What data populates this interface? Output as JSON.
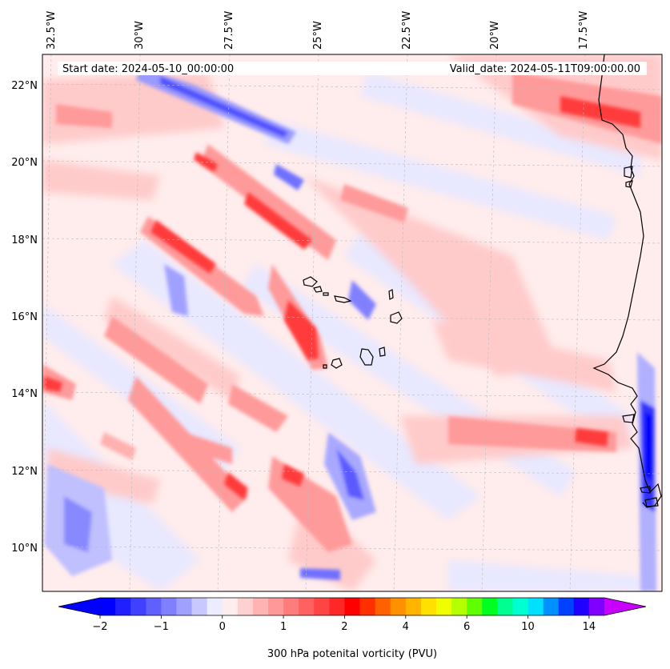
{
  "map": {
    "info": {
      "start_date": "Start date: 2024-05-10_00:00:00",
      "valid_date": "Valid_date: 2024-05-11T09:00:00.00"
    },
    "lon_ticks": [
      "32.5°W",
      "30°W",
      "27.5°W",
      "25°W",
      "22.5°W",
      "20°W",
      "17.5°W"
    ],
    "lat_ticks": [
      "22°N",
      "20°N",
      "18°N",
      "16°N",
      "14°N",
      "12°N",
      "10°N"
    ],
    "field": "300 hPa potential vorticity",
    "colors": {
      "strong_positive": "#ff2a2a",
      "mid_positive": "#ff8a8a",
      "weak_positive": "#ffd6d6",
      "near_zero": "#ffecec",
      "weak_negative": "#dcdcff",
      "strong_negative": "#3a3aff",
      "coast": "#000000"
    }
  },
  "colorbar": {
    "label": "300 hPa potenital vorticity (PVU)",
    "tick_labels": [
      "−2",
      "−1",
      "0",
      "1",
      "2",
      "4",
      "6",
      "10",
      "14"
    ],
    "tick_values": [
      -2,
      -1,
      0,
      1,
      2,
      4,
      6,
      10,
      14
    ],
    "levels": [
      -2,
      -1.75,
      -1.5,
      -1.25,
      -1,
      -0.75,
      -0.5,
      -0.25,
      0,
      0.25,
      0.5,
      0.75,
      1,
      1.25,
      1.5,
      1.75,
      2,
      2.5,
      3,
      3.5,
      4,
      4.5,
      5,
      5.5,
      6,
      7,
      8,
      9,
      10,
      11,
      12,
      13,
      14,
      15
    ],
    "colors": [
      "#0000ff",
      "#2020ff",
      "#4040ff",
      "#6060ff",
      "#8080ff",
      "#a0a0ff",
      "#c8c8ff",
      "#ececff",
      "#ffecec",
      "#ffd0d0",
      "#ffb4b4",
      "#ff9898",
      "#ff7c7c",
      "#ff6060",
      "#ff4444",
      "#ff2828",
      "#ff0000",
      "#ff3000",
      "#ff6000",
      "#ff9000",
      "#ffb400",
      "#ffe000",
      "#f0ff00",
      "#b4ff00",
      "#60ff00",
      "#00ff20",
      "#00ff90",
      "#00ffd0",
      "#00e0ff",
      "#0090ff",
      "#0040ff",
      "#2000ff",
      "#8000ff"
    ],
    "under_color": "#0000ff",
    "over_color": "#c800ff"
  }
}
